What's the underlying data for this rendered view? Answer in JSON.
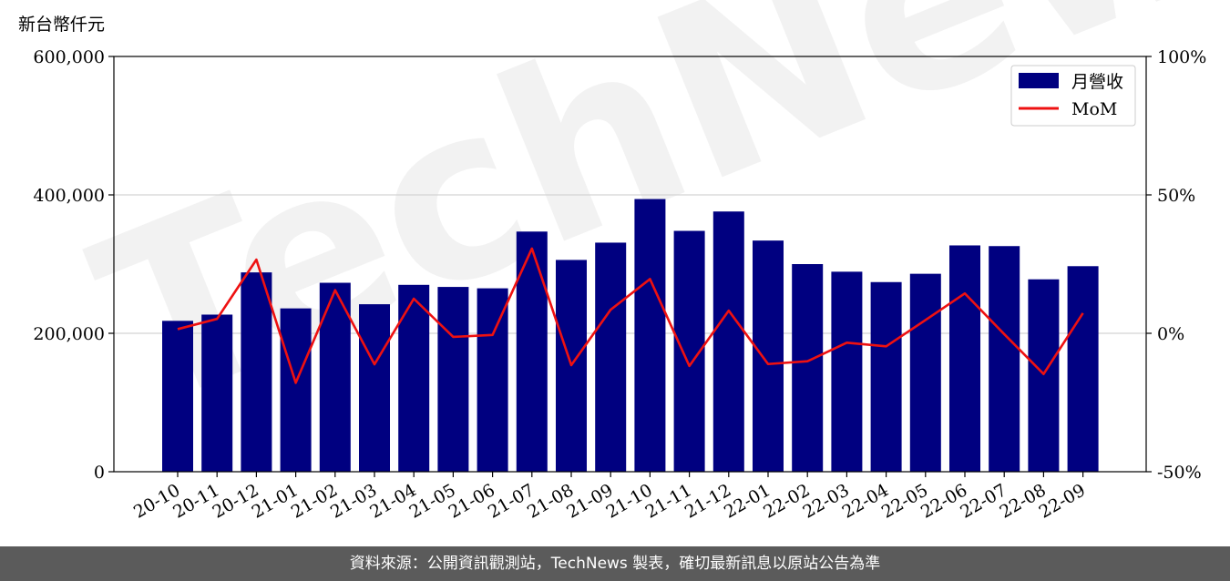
{
  "chart_data": {
    "type": "bar",
    "unit_label": "新台幣仟元",
    "categories": [
      "20-10",
      "20-11",
      "20-12",
      "21-01",
      "21-02",
      "21-03",
      "21-04",
      "21-05",
      "21-06",
      "21-07",
      "21-08",
      "21-09",
      "21-10",
      "21-11",
      "21-12",
      "22-01",
      "22-02",
      "22-03",
      "22-04",
      "22-05",
      "22-06",
      "22-07",
      "22-08",
      "22-09"
    ],
    "series": [
      {
        "name": "月營收",
        "type": "bar",
        "axis": "left",
        "color": "#000080",
        "values": [
          218000,
          227000,
          288000,
          236000,
          273000,
          242000,
          270000,
          267000,
          265000,
          347000,
          306000,
          331000,
          394000,
          348000,
          376000,
          334000,
          300000,
          289000,
          274000,
          286000,
          327000,
          326000,
          278000,
          297000
        ]
      },
      {
        "name": "MoM",
        "type": "line",
        "axis": "right",
        "color": "#ee1111",
        "values": [
          1.5,
          5.2,
          26.6,
          -17.9,
          15.6,
          -11.2,
          12.5,
          -1.3,
          -0.6,
          30.6,
          -11.5,
          8.5,
          19.6,
          -11.8,
          8.2,
          -11.1,
          -10.1,
          -3.4,
          -4.7,
          4.8,
          14.4,
          -0.3,
          -14.7,
          7.3
        ]
      }
    ],
    "y_left": {
      "ylim": [
        0,
        600000
      ],
      "ticks": [
        "0",
        "200,000",
        "400,000",
        "600,000"
      ],
      "tick_values": [
        0,
        200000,
        400000,
        600000
      ]
    },
    "y_right": {
      "ylim": [
        -50,
        100
      ],
      "ticks": [
        "-50%",
        "0%",
        "50%",
        "100%"
      ],
      "tick_values": [
        -50,
        0,
        50,
        100
      ]
    },
    "grid": "horizontal",
    "legend": "top-right"
  },
  "watermark": "TechNews",
  "footer": {
    "source_text": "資料來源：公開資訊觀測站，TechNews 製表，確切最新訊息以原站公告為準"
  }
}
